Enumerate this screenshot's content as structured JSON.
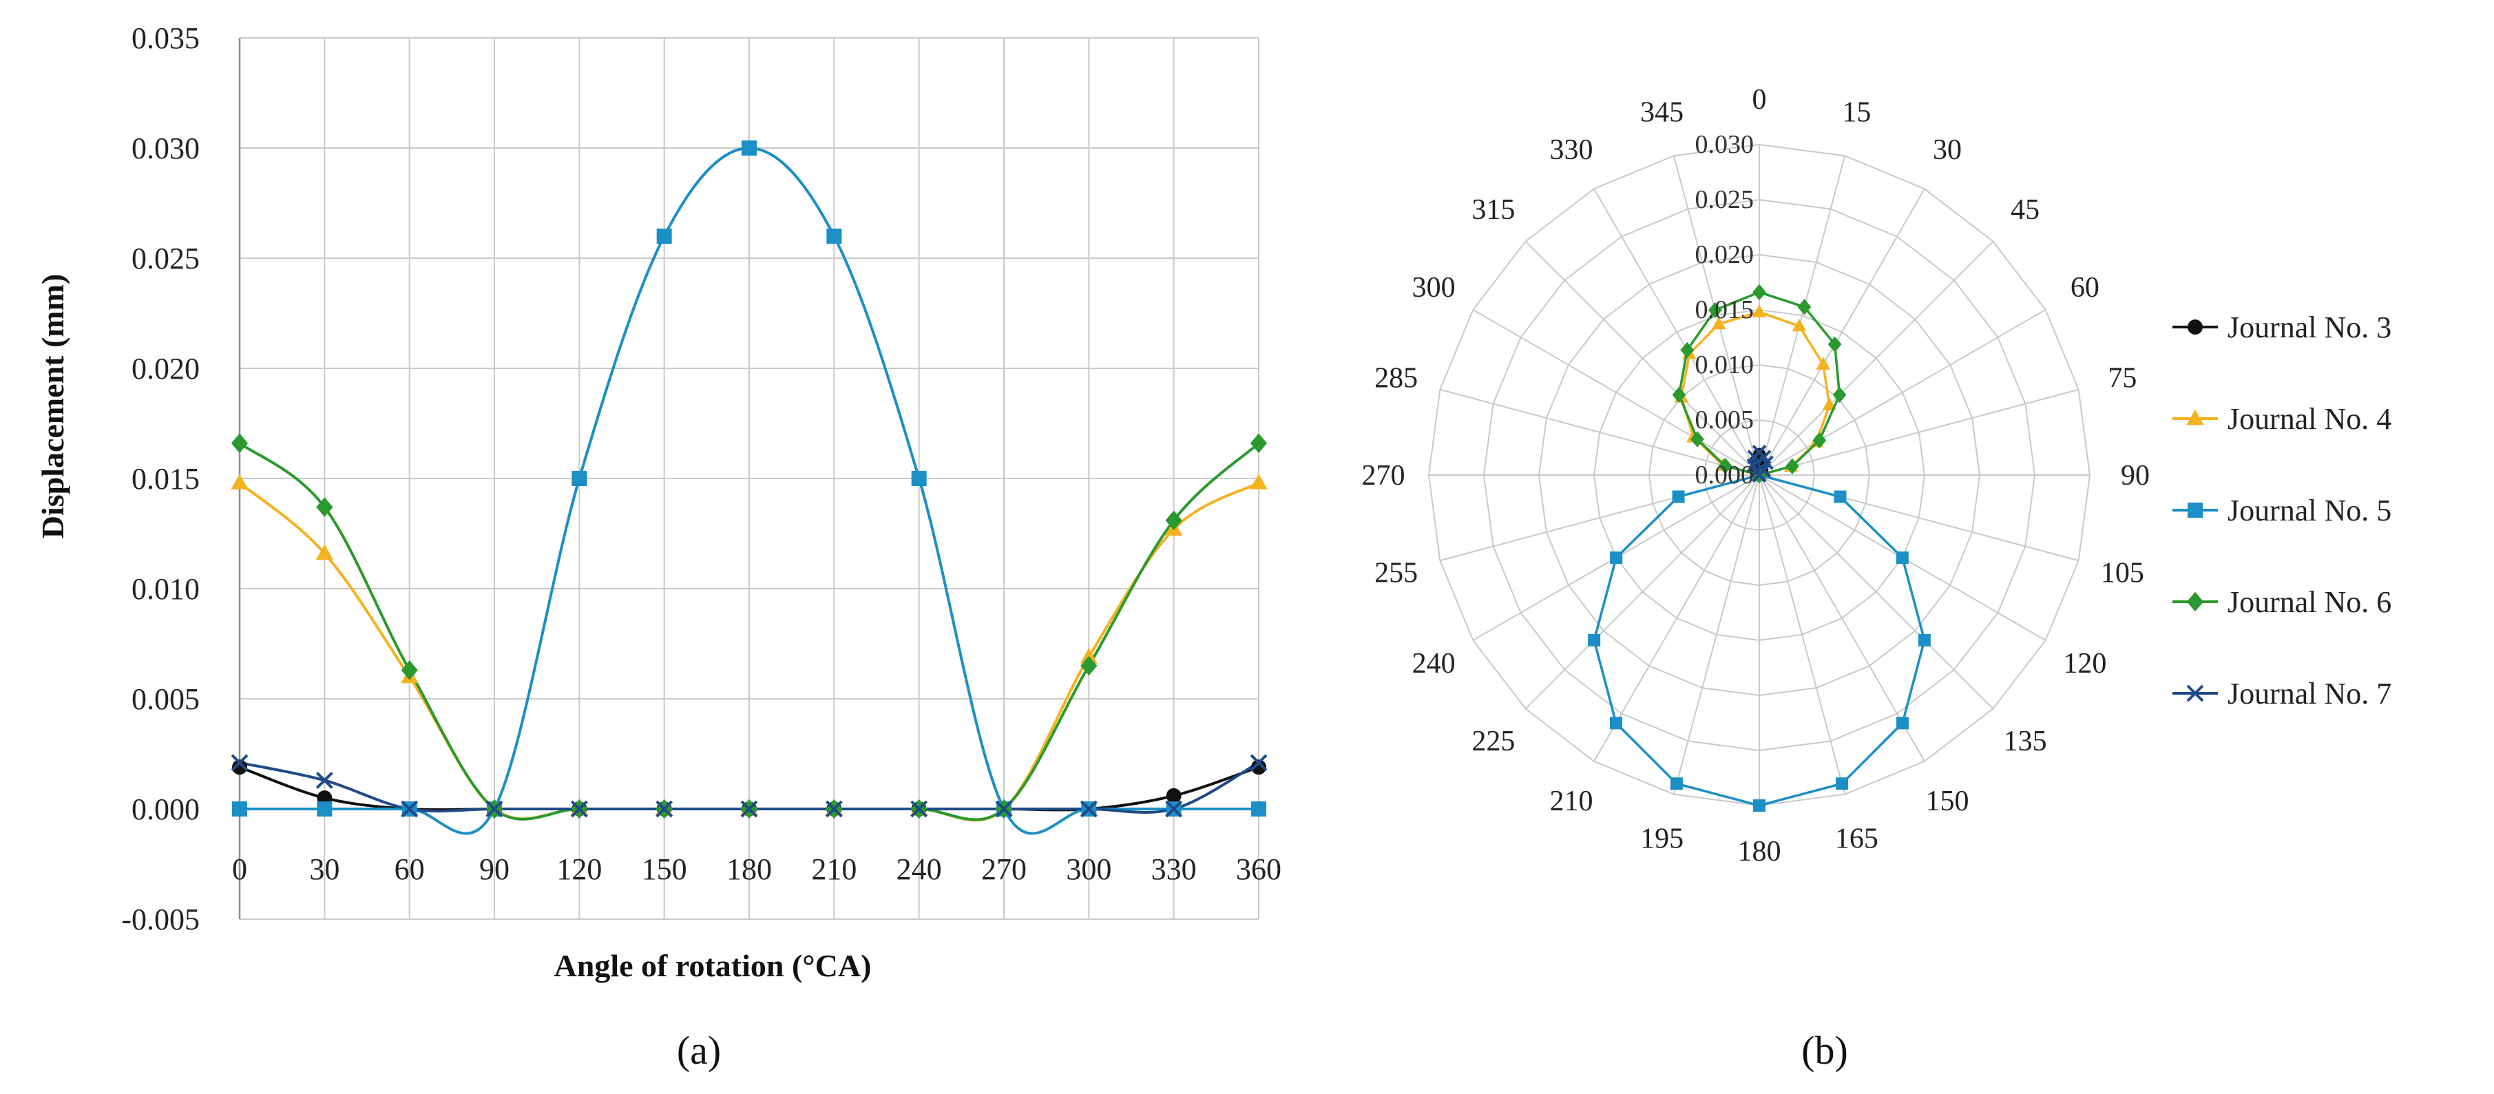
{
  "colors": {
    "Journal No. 3": "#111111",
    "Journal No. 4": "#F5B21F",
    "Journal No. 5": "#1B8FC6",
    "Journal No. 6": "#2A9A2E",
    "Journal No. 7": "#1F4A8A",
    "grid": "#C9C9C9",
    "axis": "#8C8C8C"
  },
  "chart_data": [
    {
      "panel": "a",
      "type": "line",
      "caption": "(a)",
      "xlabel": "Angle of rotation (°CA)",
      "ylabel": "Displacement (mm)",
      "x": [
        0,
        30,
        60,
        90,
        120,
        150,
        180,
        210,
        240,
        270,
        300,
        330,
        360
      ],
      "x_ticks": [
        "0",
        "30",
        "60",
        "90",
        "120",
        "150",
        "180",
        "210",
        "240",
        "270",
        "300",
        "330",
        "360"
      ],
      "ylim": [
        -0.005,
        0.035
      ],
      "y_ticks": [
        "-0.005",
        "0.000",
        "0.005",
        "0.010",
        "0.015",
        "0.020",
        "0.025",
        "0.030",
        "0.035"
      ],
      "grid": true,
      "smooth": true,
      "series": [
        {
          "name": "Journal No. 3",
          "marker": "circle",
          "values": [
            0.0019,
            0.0005,
            0.0,
            0.0,
            0.0,
            0.0,
            0.0,
            0.0,
            0.0,
            0.0,
            0.0,
            0.0006,
            0.0019
          ]
        },
        {
          "name": "Journal No. 4",
          "marker": "triangle",
          "values": [
            0.0148,
            0.0116,
            0.006,
            0.0,
            0.0,
            0.0,
            0.0,
            0.0,
            0.0,
            0.0,
            0.0069,
            0.0127,
            0.0148
          ]
        },
        {
          "name": "Journal No. 5",
          "marker": "square",
          "values": [
            0.0,
            0.0,
            0.0,
            0.0,
            0.015,
            0.026,
            0.03,
            0.026,
            0.015,
            0.0,
            0.0,
            0.0,
            0.0
          ]
        },
        {
          "name": "Journal No. 6",
          "marker": "diamond",
          "values": [
            0.0166,
            0.0137,
            0.0063,
            0.0,
            0.0,
            0.0,
            0.0,
            0.0,
            0.0,
            0.0,
            0.0065,
            0.0131,
            0.0166
          ]
        },
        {
          "name": "Journal No. 7",
          "marker": "x",
          "values": [
            0.0021,
            0.0013,
            0.0,
            0.0,
            0.0,
            0.0,
            0.0,
            0.0,
            0.0,
            0.0,
            0.0,
            0.0,
            0.0021
          ]
        }
      ]
    },
    {
      "panel": "b",
      "type": "radar",
      "caption": "(b)",
      "angles": [
        0,
        15,
        30,
        45,
        60,
        75,
        90,
        105,
        120,
        135,
        150,
        165,
        180,
        195,
        210,
        225,
        240,
        255,
        270,
        285,
        300,
        315,
        330,
        345
      ],
      "angle_labels": [
        "0",
        "15",
        "30",
        "45",
        "60",
        "75",
        "90",
        "105",
        "120",
        "135",
        "150",
        "165",
        "180",
        "195",
        "210",
        "225",
        "240",
        "255",
        "270",
        "285",
        "300",
        "315",
        "330",
        "345"
      ],
      "rlim": [
        0,
        0.03
      ],
      "r_ticks": [
        "0.000",
        "0.005",
        "0.010",
        "0.015",
        "0.020",
        "0.025",
        "0.030"
      ],
      "legend_position": "right",
      "legend": [
        "Journal No. 3",
        "Journal No. 4",
        "Journal No. 5",
        "Journal No. 6",
        "Journal No. 7"
      ],
      "series": [
        {
          "name": "Journal No. 3",
          "marker": "circle",
          "values": [
            0.0019,
            0.0012,
            0.0005,
            0.0002,
            0.0,
            0.0,
            0.0,
            0.0,
            0.0,
            0.0,
            0.0,
            0.0,
            0.0,
            0.0,
            0.0,
            0.0,
            0.0,
            0.0,
            0.0,
            0.0,
            0.0,
            0.0002,
            0.0006,
            0.0013
          ]
        },
        {
          "name": "Journal No. 4",
          "marker": "triangle",
          "values": [
            0.0148,
            0.014,
            0.0116,
            0.009,
            0.006,
            0.003,
            0.0,
            0.0,
            0.0,
            0.0,
            0.0,
            0.0,
            0.0,
            0.0,
            0.0,
            0.0,
            0.0,
            0.0,
            0.0,
            0.0034,
            0.0069,
            0.01,
            0.0127,
            0.0142
          ]
        },
        {
          "name": "Journal No. 5",
          "marker": "square",
          "values": [
            0.0,
            0.0,
            0.0,
            0.0,
            0.0,
            0.0,
            0.0,
            0.0076,
            0.015,
            0.0212,
            0.026,
            0.029,
            0.03,
            0.029,
            0.026,
            0.0212,
            0.015,
            0.0076,
            0.0,
            0.0,
            0.0,
            0.0,
            0.0,
            0.0
          ]
        },
        {
          "name": "Journal No. 6",
          "marker": "diamond",
          "values": [
            0.0166,
            0.0158,
            0.0137,
            0.0103,
            0.0063,
            0.0031,
            0.0,
            0.0,
            0.0,
            0.0,
            0.0,
            0.0,
            0.0,
            0.0,
            0.0,
            0.0,
            0.0,
            0.0,
            0.0,
            0.0032,
            0.0065,
            0.0103,
            0.0131,
            0.0155
          ]
        },
        {
          "name": "Journal No. 7",
          "marker": "x",
          "values": [
            0.0021,
            0.0017,
            0.0013,
            0.0006,
            0.0,
            0.0,
            0.0,
            0.0,
            0.0,
            0.0,
            0.0,
            0.0,
            0.0,
            0.0,
            0.0,
            0.0,
            0.0,
            0.0,
            0.0,
            0.0,
            0.0,
            0.0004,
            0.001,
            0.0017
          ]
        }
      ]
    }
  ]
}
